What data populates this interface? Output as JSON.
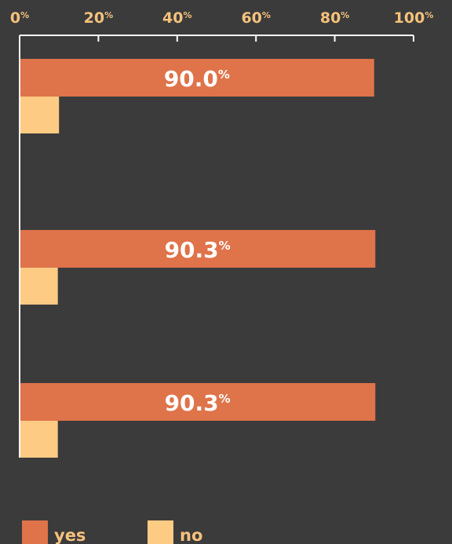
{
  "chart_data": {
    "type": "bar",
    "orientation": "horizontal",
    "categories": [
      "",
      "",
      ""
    ],
    "series": [
      {
        "name": "yes",
        "values": [
          90.0,
          90.3,
          90.3
        ],
        "labels": [
          "90.0",
          "90.3",
          "90.3"
        ],
        "color": "#df734a"
      },
      {
        "name": "no",
        "values": [
          10.0,
          9.7,
          9.7
        ],
        "color": "#fecb84"
      }
    ],
    "xlim": [
      0,
      100
    ],
    "ticks": [
      0,
      20,
      40,
      60,
      80,
      100
    ],
    "tick_unit": "%",
    "value_unit": "%",
    "grid": false,
    "legend_position": "bottom-left"
  },
  "colors": {
    "background": "#3c3b3b",
    "axis": "#ffffff",
    "tick_text": "#f4c27c",
    "value_text": "#ffffff"
  }
}
